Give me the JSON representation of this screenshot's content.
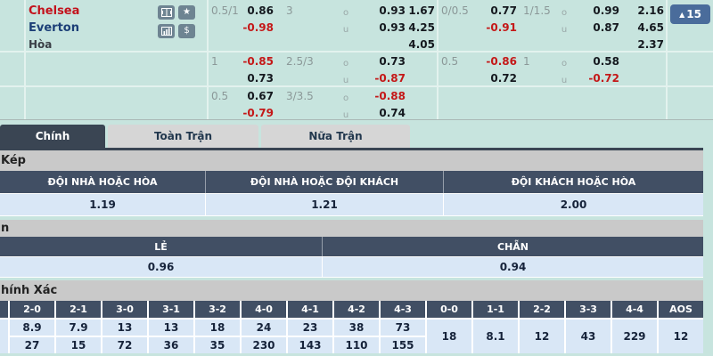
{
  "match": {
    "home": "Chelsea",
    "away": "Everton",
    "draw_label": "Hòa",
    "more_count": "15"
  },
  "odds_table": {
    "ou_labels": [
      "o",
      "u"
    ],
    "rows": [
      {
        "left": {
          "hdp": "0.5/1",
          "hdp_odds": [
            "0.86",
            "-0.98"
          ],
          "total": "3",
          "ou_odds": [
            "0.93",
            "0.93"
          ],
          "x12": [
            "1.67",
            "4.25",
            "4.05"
          ]
        },
        "right": {
          "hdp": "0/0.5",
          "hdp_odds": [
            "0.77",
            "-0.91"
          ],
          "total": "1/1.5",
          "ou_odds": [
            "0.99",
            "0.87"
          ],
          "x12": [
            "2.16",
            "4.65",
            "2.37"
          ]
        }
      },
      {
        "left": {
          "hdp": "1",
          "hdp_odds": [
            "-0.85",
            "0.73"
          ],
          "total": "2.5/3",
          "ou_odds": [
            "0.73",
            "-0.87"
          ]
        },
        "right": {
          "hdp": "0.5",
          "hdp_odds": [
            "-0.86",
            "0.72"
          ],
          "total": "1",
          "ou_odds": [
            "0.58",
            "-0.72"
          ]
        }
      },
      {
        "left": {
          "hdp": "0.5",
          "hdp_odds": [
            "0.67",
            "-0.79"
          ],
          "total": "3/3.5",
          "ou_odds": [
            "-0.88",
            "0.74"
          ]
        }
      }
    ]
  },
  "tabs": [
    {
      "label": "Chính",
      "active": true
    },
    {
      "label": "Toàn Trận",
      "active": false
    },
    {
      "label": "Nữa Trận",
      "active": false
    }
  ],
  "sections": {
    "double_chance": {
      "title": "Kép",
      "headers": [
        "ĐỘI NHÀ HOẶC HÒA",
        "ĐỘI NHÀ HOẶC ĐỘI KHÁCH",
        "ĐỘI KHÁCH HOẶC HÒA"
      ],
      "values": [
        "1.19",
        "1.21",
        "2.00"
      ]
    },
    "odd_even": {
      "title": "n",
      "headers": [
        "LẺ",
        "CHẴN"
      ],
      "values": [
        "0.96",
        "0.94"
      ]
    },
    "correct_score": {
      "title": "hính Xác",
      "columns": [
        {
          "score": "2-0",
          "odds": [
            "8.9",
            "27"
          ]
        },
        {
          "score": "2-1",
          "odds": [
            "7.9",
            "15"
          ]
        },
        {
          "score": "3-0",
          "odds": [
            "13",
            "72"
          ]
        },
        {
          "score": "3-1",
          "odds": [
            "13",
            "36"
          ]
        },
        {
          "score": "3-2",
          "odds": [
            "18",
            "35"
          ]
        },
        {
          "score": "4-0",
          "odds": [
            "24",
            "230"
          ]
        },
        {
          "score": "4-1",
          "odds": [
            "23",
            "143"
          ]
        },
        {
          "score": "4-2",
          "odds": [
            "38",
            "110"
          ]
        },
        {
          "score": "4-3",
          "odds": [
            "73",
            "155"
          ]
        },
        {
          "score": "0-0",
          "odds": [
            "18"
          ]
        },
        {
          "score": "1-1",
          "odds": [
            "8.1"
          ]
        },
        {
          "score": "2-2",
          "odds": [
            "12"
          ]
        },
        {
          "score": "3-3",
          "odds": [
            "43"
          ]
        },
        {
          "score": "4-4",
          "odds": [
            "229"
          ]
        },
        {
          "score": "AOS",
          "odds": [
            "12"
          ]
        }
      ]
    }
  },
  "colors": {
    "accent_navy": "#414f64",
    "mint_bg": "#c7e4de",
    "odds_blue_bg": "#d9e7f6",
    "negative_red": "#c41818",
    "home_red": "#c3121c",
    "away_blue": "#1c3f77"
  }
}
